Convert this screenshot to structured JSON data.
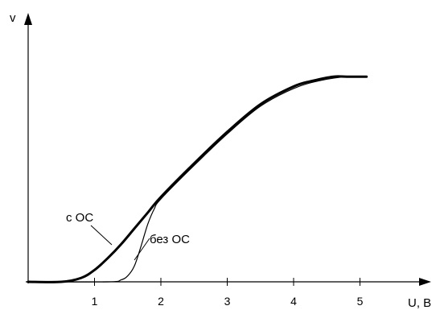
{
  "colors": {
    "axis": "#000000",
    "curve": "#000000",
    "background": "#ffffff"
  },
  "chart_data": {
    "type": "line",
    "title": "",
    "xlabel": "U, В",
    "ylabel": "v",
    "xlim": [
      0,
      6
    ],
    "ylim": [
      0,
      1
    ],
    "xticks": [
      1,
      2,
      3,
      4,
      5
    ],
    "tick_labels": [
      "1",
      "2",
      "3",
      "4",
      "5"
    ],
    "grid": false,
    "legend": "none",
    "series": [
      {
        "name": "с ОС",
        "style": "bold",
        "x": [
          0.0,
          0.5,
          0.8,
          1.0,
          1.2,
          1.4,
          1.6,
          1.8,
          2.0,
          2.5,
          3.0,
          3.5,
          4.0,
          4.3,
          4.6,
          4.8,
          5.1
        ],
        "y": [
          0.0,
          0.0,
          0.02,
          0.06,
          0.12,
          0.19,
          0.27,
          0.35,
          0.43,
          0.6,
          0.76,
          0.9,
          0.99,
          1.02,
          1.04,
          1.04,
          1.04
        ]
      },
      {
        "name": "без ОС",
        "style": "thin",
        "x": [
          0.0,
          1.2,
          1.4,
          1.5,
          1.6,
          1.7,
          1.8,
          1.9,
          2.0,
          2.5,
          3.0,
          3.5,
          4.0,
          4.4,
          4.8,
          5.1
        ],
        "y": [
          0.0,
          0.0,
          0.01,
          0.03,
          0.08,
          0.18,
          0.29,
          0.37,
          0.42,
          0.59,
          0.75,
          0.89,
          0.98,
          1.02,
          1.04,
          1.04
        ]
      }
    ],
    "annotations": [
      {
        "text": "с ОС",
        "series": "с ОС"
      },
      {
        "text": "без ОС",
        "series": "без ОС"
      }
    ]
  }
}
